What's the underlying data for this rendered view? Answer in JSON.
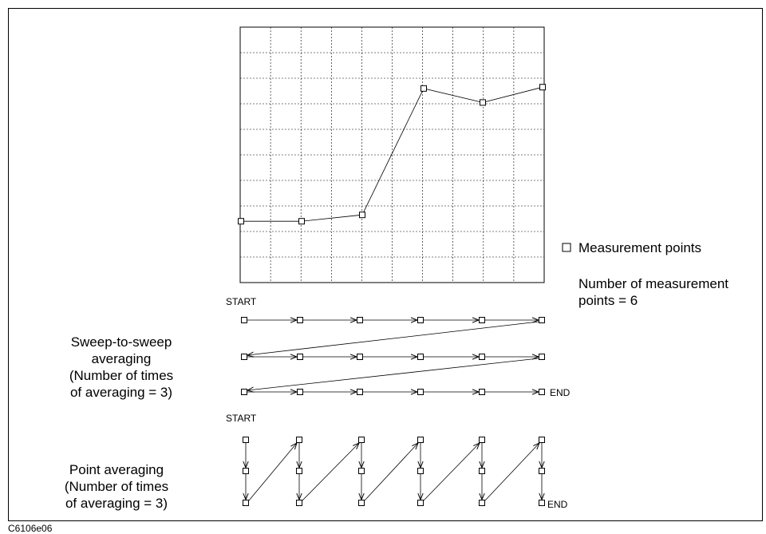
{
  "figure_id": "C6106e06",
  "legend": {
    "marker_label": "Measurement points",
    "count_line1": "Number of measurement",
    "count_line2": "points = 6"
  },
  "sweep_averaging": {
    "start_label": "START",
    "end_label": "END",
    "title_line1": "Sweep-to-sweep",
    "title_line2": "averaging",
    "title_line3": "(Number of times",
    "title_line4": "of averaging = 3)",
    "points": 6,
    "sweeps": 3
  },
  "point_averaging": {
    "start_label": "START",
    "end_label": "END",
    "title_line1": "Point averaging",
    "title_line2": "(Number of times",
    "title_line3": "of averaging = 3)",
    "points": 6,
    "repeats": 3
  },
  "chart_data": {
    "type": "line",
    "x": [
      1,
      2,
      3,
      4,
      5,
      6
    ],
    "values": [
      2.4,
      2.4,
      2.65,
      7.6,
      7.05,
      7.65
    ],
    "ylim": [
      0,
      10
    ],
    "grid": true
  }
}
